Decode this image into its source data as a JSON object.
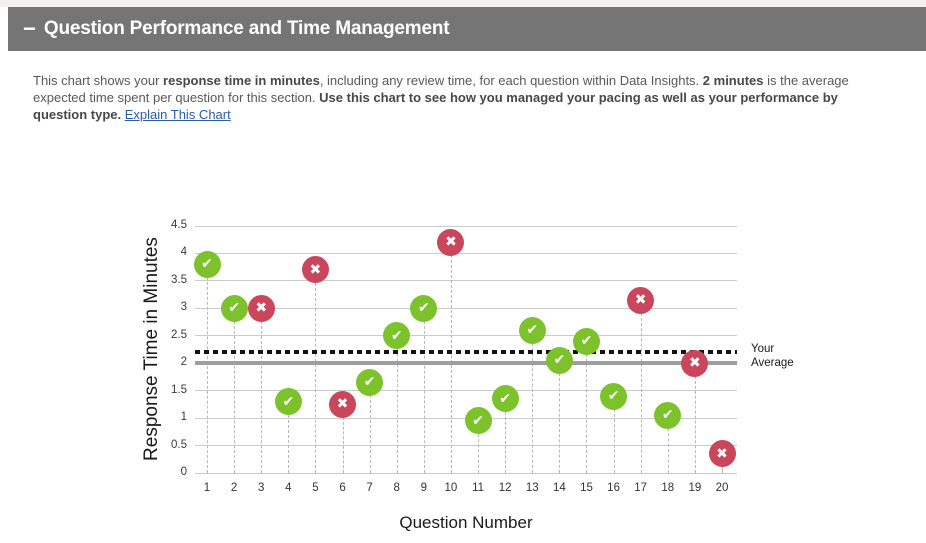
{
  "header": {
    "collapse_icon": "−",
    "title": "Question Performance and Time Management",
    "background": "#757575"
  },
  "description": {
    "segments": [
      {
        "text": "This chart shows your ",
        "style": "normal"
      },
      {
        "text": "response time in minutes",
        "style": "bold"
      },
      {
        "text": ", including any review time, for each question within Data Insights. ",
        "style": "normal"
      },
      {
        "text": "2 minutes",
        "style": "bold"
      },
      {
        "text": " is the average expected time spent per question for this section. ",
        "style": "normal"
      },
      {
        "text": "Use this chart to see how you managed your pacing as well as your performance by question type.",
        "style": "bold"
      },
      {
        "text": " ",
        "style": "normal"
      },
      {
        "text": "Explain This Chart",
        "style": "link"
      }
    ]
  },
  "icons": {
    "correct": "✔",
    "incorrect": "✖"
  },
  "colors": {
    "correct": "#7cc22b",
    "incorrect": "#c9465c",
    "gridline": "#cbcbcb",
    "dropline": "#b8b8b8",
    "average_line": "#141414",
    "expected_line": "#9e9e9e",
    "link": "#2a5caa",
    "header_bg": "#757575"
  },
  "chart_data": {
    "type": "scatter",
    "title": "",
    "xlabel": "Question Number",
    "ylabel": "Response Time in Minutes",
    "ylim": [
      0,
      4.5
    ],
    "yticks": [
      0,
      0.5,
      1,
      1.5,
      2,
      2.5,
      3,
      3.5,
      4,
      4.5
    ],
    "grid": "horizontal",
    "categories": [
      1,
      2,
      3,
      4,
      5,
      6,
      7,
      8,
      9,
      10,
      11,
      12,
      13,
      14,
      15,
      16,
      17,
      18,
      19,
      20
    ],
    "points": [
      {
        "question": 1,
        "minutes": 3.8,
        "result": "correct"
      },
      {
        "question": 2,
        "minutes": 3.0,
        "result": "correct"
      },
      {
        "question": 3,
        "minutes": 3.0,
        "result": "incorrect"
      },
      {
        "question": 4,
        "minutes": 1.3,
        "result": "correct"
      },
      {
        "question": 5,
        "minutes": 3.7,
        "result": "incorrect"
      },
      {
        "question": 6,
        "minutes": 1.25,
        "result": "incorrect"
      },
      {
        "question": 7,
        "minutes": 1.65,
        "result": "correct"
      },
      {
        "question": 8,
        "minutes": 2.5,
        "result": "correct"
      },
      {
        "question": 9,
        "minutes": 3.0,
        "result": "correct"
      },
      {
        "question": 10,
        "minutes": 4.2,
        "result": "incorrect"
      },
      {
        "question": 11,
        "minutes": 0.95,
        "result": "correct"
      },
      {
        "question": 12,
        "minutes": 1.35,
        "result": "correct"
      },
      {
        "question": 13,
        "minutes": 2.6,
        "result": "correct"
      },
      {
        "question": 14,
        "minutes": 2.05,
        "result": "correct"
      },
      {
        "question": 15,
        "minutes": 2.4,
        "result": "correct"
      },
      {
        "question": 16,
        "minutes": 1.4,
        "result": "correct"
      },
      {
        "question": 17,
        "minutes": 3.15,
        "result": "incorrect"
      },
      {
        "question": 18,
        "minutes": 1.05,
        "result": "correct"
      },
      {
        "question": 19,
        "minutes": 2.0,
        "result": "incorrect"
      },
      {
        "question": 20,
        "minutes": 0.35,
        "result": "incorrect"
      }
    ],
    "reference_lines": [
      {
        "name": "expected-time",
        "value": 2.0,
        "style": "solid"
      },
      {
        "name": "your-average",
        "value": 2.2,
        "style": "dotted",
        "label": "Your Average",
        "label_position": "right"
      }
    ]
  }
}
